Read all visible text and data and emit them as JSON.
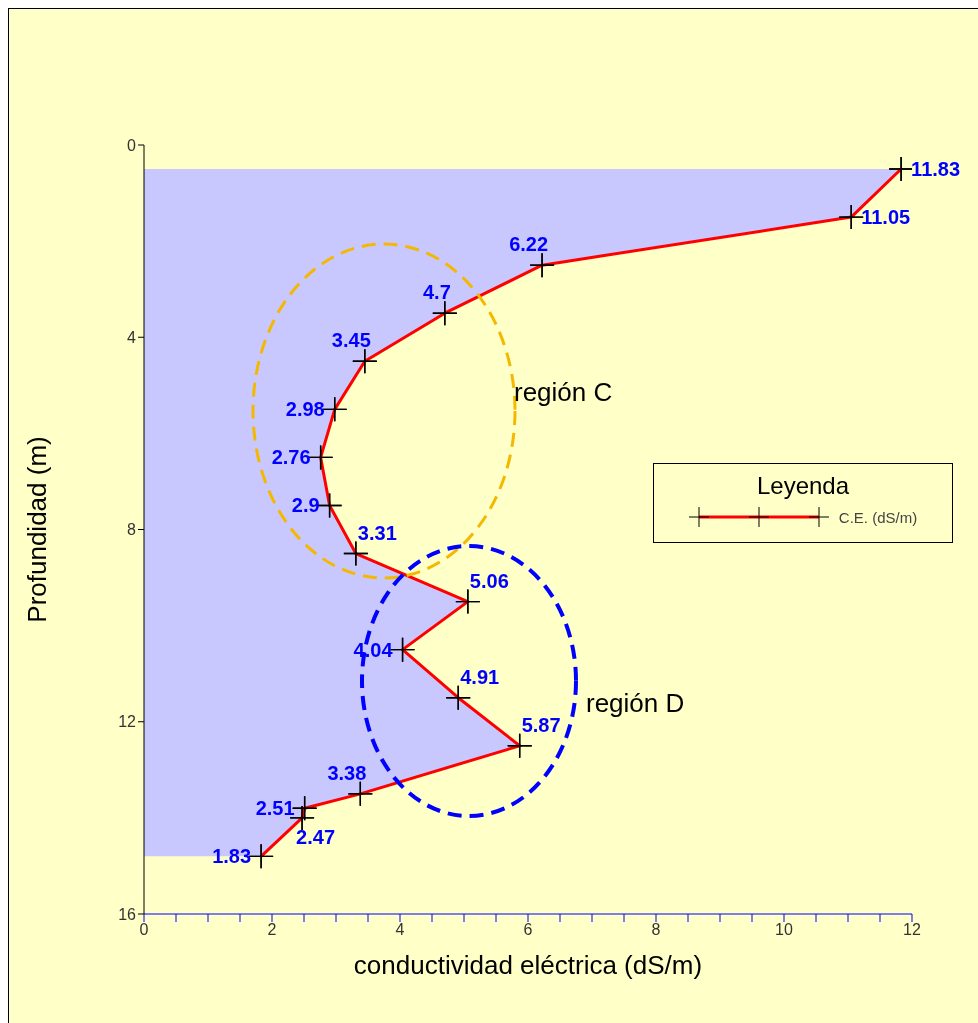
{
  "chart_data": {
    "type": "line",
    "orientation": "horizontal",
    "xlabel": "conductividad eléctrica (dS/m)",
    "ylabel": "Profundidad (m)",
    "legend_title": "Leyenda",
    "legend": "right",
    "marker": "cross",
    "x": [
      0.5,
      1.5,
      2.5,
      3.5,
      4.5,
      5.5,
      6.5,
      7.5,
      8.5,
      9.5,
      10.5,
      11.5,
      12.5,
      13.5,
      13.8,
      14,
      14.8
    ],
    "series": [
      {
        "type": "area",
        "color": "#c8c8ff",
        "values": [
          11.83,
          11.05,
          6.22,
          4.7,
          3.45,
          2.98,
          2.76,
          2.9,
          3.31,
          5.06,
          4.04,
          4.91,
          5.87,
          3.38,
          2.51,
          2.47,
          1.83
        ]
      },
      {
        "type": "line",
        "name": "C.E. (dS/m)",
        "color": "#ff0000",
        "values": [
          11.83,
          11.05,
          6.22,
          4.7,
          3.45,
          2.98,
          2.76,
          2.9,
          3.31,
          5.06,
          4.04,
          4.91,
          5.87,
          3.38,
          2.51,
          2.47,
          1.83
        ],
        "value_labels": [
          "11.83",
          "11.05",
          "6.22",
          "4.7",
          "3.45",
          "2.98",
          "2.76",
          "2.9",
          "3.31",
          "5.06",
          "4.04",
          "4.91",
          "5.87",
          "3.38",
          "2.51",
          "2.47",
          "1.83"
        ]
      }
    ],
    "xlim": [
      0,
      12
    ],
    "xticks": [
      0,
      {
        "value": 0.5,
        "label": null
      },
      {
        "value": 1,
        "label": null
      },
      {
        "value": 1.5,
        "label": null
      },
      2,
      {
        "value": 2.5,
        "label": null
      },
      {
        "value": 3,
        "label": null
      },
      {
        "value": 3.5,
        "label": null
      },
      4,
      {
        "value": 4.5,
        "label": null
      },
      {
        "value": 5,
        "label": null
      },
      {
        "value": 5.5,
        "label": null
      },
      6,
      {
        "value": 6.5,
        "label": null
      },
      {
        "value": 7,
        "label": null
      },
      {
        "value": 7.5,
        "label": null
      },
      8,
      {
        "value": 8.5,
        "label": null
      },
      {
        "value": 9,
        "label": null
      },
      {
        "value": 9.5,
        "label": null
      },
      10,
      {
        "value": 10.5,
        "label": null
      },
      {
        "value": 11,
        "label": null
      },
      {
        "value": 11.5,
        "label": null
      },
      12
    ],
    "ylim": [
      16,
      0
    ],
    "yticks": [
      0,
      4,
      8,
      12,
      16
    ],
    "annotations": [
      "región C",
      "región D"
    ]
  }
}
